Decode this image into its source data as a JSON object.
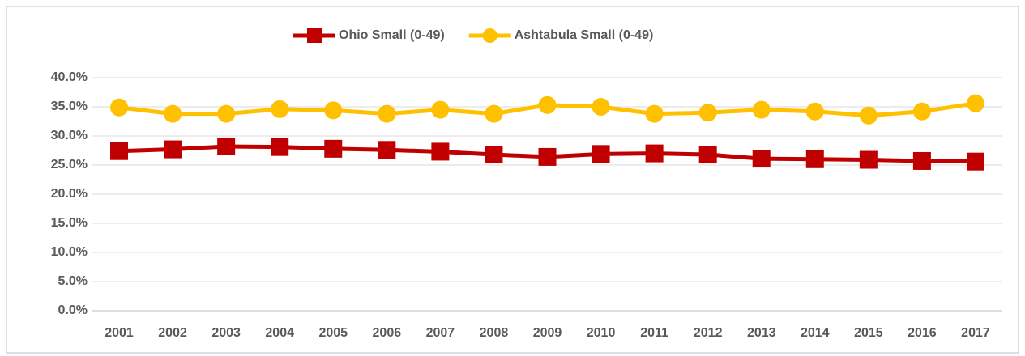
{
  "chart_data": {
    "type": "line",
    "categories": [
      "2001",
      "2002",
      "2003",
      "2004",
      "2005",
      "2006",
      "2007",
      "2008",
      "2009",
      "2010",
      "2011",
      "2012",
      "2013",
      "2014",
      "2015",
      "2016",
      "2017"
    ],
    "series": [
      {
        "name": "Ohio Small (0-49)",
        "color": "#c00000",
        "marker": "square",
        "values": [
          27.4,
          27.7,
          28.2,
          28.1,
          27.8,
          27.6,
          27.3,
          26.8,
          26.4,
          26.9,
          27.0,
          26.8,
          26.1,
          26.0,
          25.9,
          25.7,
          25.6
        ]
      },
      {
        "name": "Ashtabula Small (0-49)",
        "color": "#ffc000",
        "marker": "circle",
        "values": [
          34.9,
          33.8,
          33.8,
          34.6,
          34.4,
          33.8,
          34.5,
          33.8,
          35.3,
          35.0,
          33.8,
          34.0,
          34.5,
          34.2,
          33.5,
          34.2,
          35.6
        ]
      }
    ],
    "ylim": [
      0,
      40
    ],
    "yticks": [
      {
        "value": 0,
        "label": "0.0%"
      },
      {
        "value": 5,
        "label": "5.0%"
      },
      {
        "value": 10,
        "label": "10.0%"
      },
      {
        "value": 15,
        "label": "15.0%"
      },
      {
        "value": 20,
        "label": "20.0%"
      },
      {
        "value": 25,
        "label": "25.0%"
      },
      {
        "value": 30,
        "label": "30.0%"
      },
      {
        "value": 35,
        "label": "35.0%"
      },
      {
        "value": 40,
        "label": "40.0%"
      }
    ],
    "grid": true,
    "legend": "top"
  }
}
